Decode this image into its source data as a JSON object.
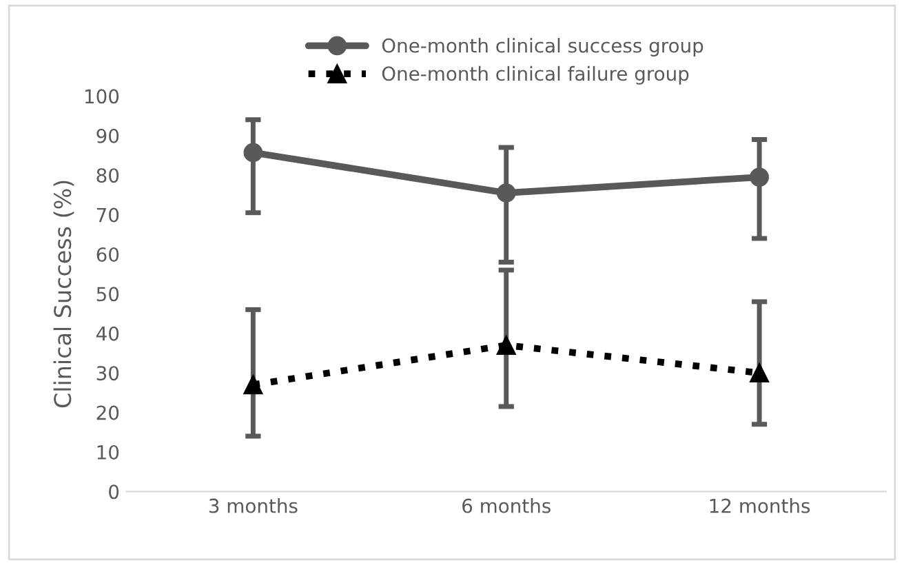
{
  "chart_data": {
    "type": "line",
    "ylabel": "Clinical Success (%)",
    "categories": [
      "3 months",
      "6 months",
      "12 months"
    ],
    "series": [
      {
        "name": "One-month clinical success group",
        "color": "#595959",
        "marker": "circle",
        "line_style": "solid",
        "values": [
          85.7,
          75.5,
          79.5
        ],
        "errors": [
          [
            70.5,
            94
          ],
          [
            58,
            87
          ],
          [
            64,
            89
          ]
        ]
      },
      {
        "name": "One-month clinical failure group",
        "color": "#000000",
        "marker": "triangle",
        "line_style": "dotted",
        "values": [
          27,
          37,
          30
        ],
        "errors": [
          [
            14,
            46
          ],
          [
            21.5,
            56
          ],
          [
            17,
            48
          ]
        ]
      }
    ],
    "ylim": [
      0,
      100
    ],
    "yticks": [
      0,
      10,
      20,
      30,
      40,
      50,
      60,
      70,
      80,
      90,
      100
    ],
    "grid": false,
    "legend": "top"
  }
}
